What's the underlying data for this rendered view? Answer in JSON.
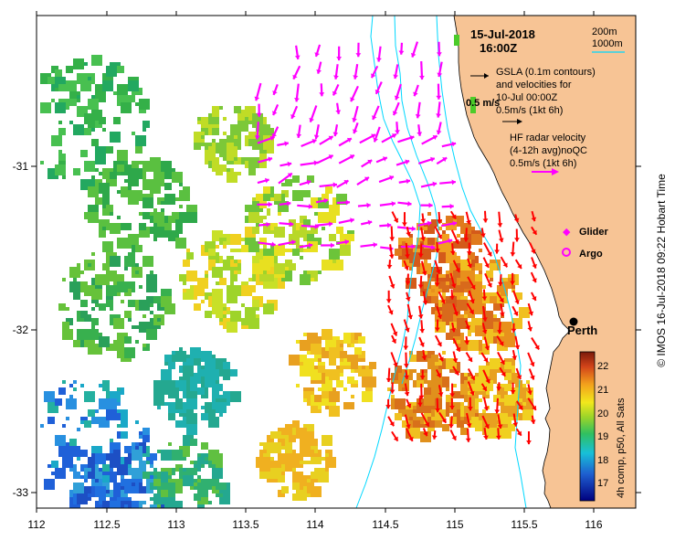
{
  "map": {
    "date": "15-Jul-2018",
    "time": "16:00Z",
    "contours_legend": {
      "c200": "200m",
      "c1000": "1000m"
    },
    "gsla": {
      "line1": "GSLA (0.1m contours)",
      "line2": "and velocities for",
      "line3": "10-Jul 00:00Z",
      "scale": "0.5m/s (1kt 6h)"
    },
    "hf_radar": {
      "line1": "HF radar velocity",
      "line2": "(4-12h avg)noQC",
      "scale": "0.5m/s (1kt 6h)"
    },
    "vector_scale_label": "0.5 m/s",
    "legend": {
      "glider": "Glider",
      "argo": "Argo"
    },
    "city": "Perth",
    "x_ticks": [
      "112",
      "112.5",
      "113",
      "113.5",
      "114",
      "114.5",
      "115",
      "115.5",
      "116"
    ],
    "y_ticks": [
      "-31",
      "-32",
      "-33"
    ],
    "colorbar": {
      "ticks": [
        "22",
        "21",
        "20",
        "19",
        "18",
        "17"
      ],
      "caption": "4h comp, p50, All Sats"
    },
    "credit": "© IMOS 16-Jul-2018 09:22 Hobart Time",
    "colors": {
      "land": "#f7c495",
      "contour": "#00d8ff",
      "gsla_vector": "#ff00ff",
      "hf_vector": "#ff0000"
    }
  }
}
